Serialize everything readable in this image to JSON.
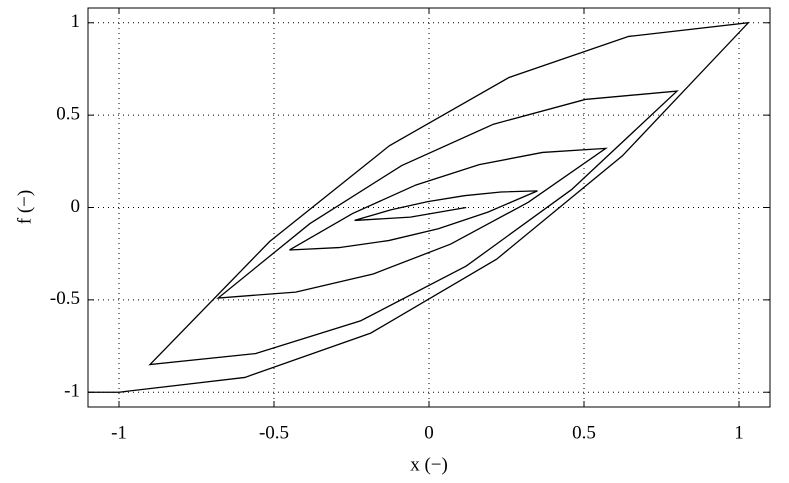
{
  "chart_data": {
    "type": "line",
    "x_label": "x (−)",
    "y_label": "f (−)",
    "xlim": [
      -1.1,
      1.1
    ],
    "ylim": [
      -1.08,
      1.08
    ],
    "xticks": [
      -1,
      -0.5,
      0,
      0.5,
      1
    ],
    "yticks": [
      -1,
      -0.5,
      0,
      0.5,
      1
    ],
    "grid": true,
    "series": [
      {
        "color": "#000000",
        "x": [
          -1.1,
          -1,
          -0.594,
          -0.188,
          0.218,
          0.624,
          1.03,
          0.644,
          0.258,
          -0.128,
          -0.514,
          -0.9,
          -0.56,
          -0.22,
          0.12,
          0.46,
          0.8,
          0.504,
          0.208,
          -0.088,
          -0.384,
          -0.68,
          -0.43,
          -0.18,
          0.07,
          0.32,
          0.57,
          0.366,
          0.162,
          -0.042,
          -0.246,
          -0.45,
          -0.29,
          -0.13,
          0.03,
          0.19,
          0.35,
          0.232,
          0.114,
          -0.004,
          -0.122,
          -0.24,
          -0.06,
          0.12
        ],
        "values": [
          -1,
          -1,
          -0.92,
          -0.68,
          -0.28,
          0.28,
          1,
          0.926,
          0.704,
          0.334,
          -0.184,
          -0.85,
          -0.791,
          -0.613,
          -0.317,
          0.097,
          0.63,
          0.585,
          0.451,
          0.227,
          -0.087,
          -0.49,
          -0.458,
          -0.36,
          -0.198,
          0.028,
          0.32,
          0.298,
          0.232,
          0.122,
          -0.032,
          -0.23,
          -0.217,
          -0.179,
          -0.115,
          -0.025,
          0.09,
          0.084,
          0.064,
          0.032,
          -0.012,
          -0.07,
          -0.052,
          0
        ]
      }
    ]
  }
}
